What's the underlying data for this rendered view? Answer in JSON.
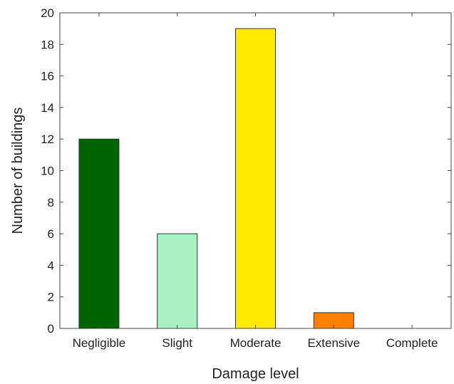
{
  "chart_data": {
    "type": "bar",
    "title": "",
    "xlabel": "Damage level",
    "ylabel": "Number of buildings",
    "categories": [
      "Negligible",
      "Slight",
      "Moderate",
      "Extensive",
      "Complete"
    ],
    "values": [
      12,
      6,
      19,
      1,
      0
    ],
    "colors": [
      "#006400",
      "#a6f0c4",
      "#ffea00",
      "#ff7f00",
      "#cccccc"
    ],
    "ylim": [
      0,
      20
    ],
    "yticks": [
      0,
      2,
      4,
      6,
      8,
      10,
      12,
      14,
      16,
      18,
      20
    ],
    "ytick_labels": [
      "0",
      "2",
      "4",
      "6",
      "8",
      "10",
      "12",
      "14",
      "16",
      "18",
      "20"
    ],
    "grid": false,
    "legend": "none"
  }
}
